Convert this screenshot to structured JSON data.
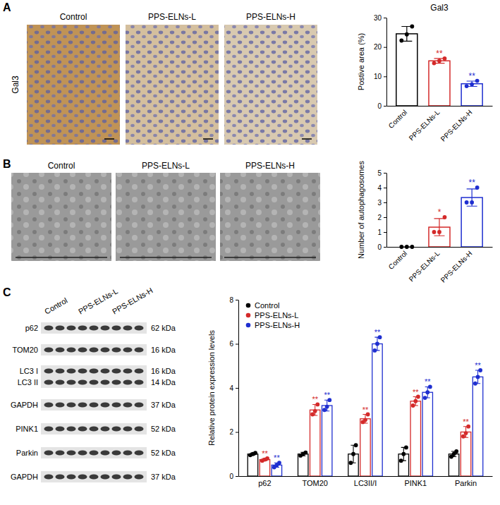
{
  "chart_data": [
    {
      "type": "bar",
      "title": "Gal3",
      "y_label": "Postive area (%)",
      "categories": [
        "Control",
        "PPS-ELNs-L",
        "PPS-ELNs-H"
      ],
      "values": [
        24.5,
        15.3,
        7.5
      ],
      "error": [
        2.5,
        0.8,
        0.9
      ],
      "points": [
        [
          22.2,
          24.3,
          27
        ],
        [
          14.5,
          15.3,
          16.1
        ],
        [
          6.7,
          7.3,
          8.5
        ]
      ],
      "significance": [
        null,
        "**",
        "**"
      ],
      "colors": [
        "#000000",
        "#d42a2a",
        "#1f2fd0"
      ],
      "marker": "circle",
      "grid": false,
      "ylim": [
        0,
        30
      ],
      "yticks": [
        0,
        10,
        20,
        30
      ]
    },
    {
      "type": "bar",
      "y_label": "Number of autophagosomes",
      "categories": [
        "Control",
        "PPS-ELNs-L",
        "PPS-ELNs-H"
      ],
      "values": [
        0,
        1.33,
        3.33
      ],
      "error": [
        0,
        0.58,
        0.58
      ],
      "points": [
        [
          0,
          0,
          0
        ],
        [
          1,
          1,
          2
        ],
        [
          3,
          3,
          4
        ]
      ],
      "significance": [
        null,
        "*",
        "**"
      ],
      "colors": [
        "#000000",
        "#d42a2a",
        "#1f2fd0"
      ],
      "marker": "circle",
      "grid": false,
      "ylim": [
        0,
        5
      ],
      "yticks": [
        0,
        1,
        2,
        3,
        4,
        5
      ]
    },
    {
      "type": "bar",
      "y_label": "Relative protein expression levels",
      "categories": [
        "p62",
        "TOM20",
        "LC3II/I",
        "PINK1",
        "Parkin"
      ],
      "series": [
        {
          "name": "Control",
          "color": "#000000",
          "values": [
            1,
            1,
            1,
            1,
            1
          ],
          "error": [
            0.05,
            0.08,
            0.4,
            0.3,
            0.12
          ],
          "points": [
            [
              0.95,
              1,
              1.05
            ],
            [
              0.93,
              1,
              1.07
            ],
            [
              0.6,
              1,
              1.4
            ],
            [
              0.7,
              1,
              1.3
            ],
            [
              0.88,
              1,
              1.12
            ]
          ],
          "significance": [
            null,
            null,
            null,
            null,
            null
          ]
        },
        {
          "name": "PPS-ELNs-L",
          "color": "#d42a2a",
          "values": [
            0.75,
            3.0,
            2.6,
            3.4,
            2.0
          ],
          "error": [
            0.05,
            0.25,
            0.2,
            0.2,
            0.25
          ],
          "points": [
            [
              0.7,
              0.75,
              0.8
            ],
            [
              2.8,
              2.95,
              3.25
            ],
            [
              2.45,
              2.55,
              2.8
            ],
            [
              3.2,
              3.4,
              3.6
            ],
            [
              1.8,
              1.95,
              2.25
            ]
          ],
          "significance": [
            "**",
            "**",
            "**",
            "**",
            "**"
          ]
        },
        {
          "name": "PPS-ELNs-H",
          "color": "#1f2fd0",
          "values": [
            0.5,
            3.2,
            6.0,
            3.8,
            4.5
          ],
          "error": [
            0.1,
            0.25,
            0.3,
            0.25,
            0.3
          ],
          "points": [
            [
              0.4,
              0.5,
              0.6
            ],
            [
              3.0,
              3.15,
              3.45
            ],
            [
              5.7,
              6.0,
              6.3
            ],
            [
              3.55,
              3.8,
              4.05
            ],
            [
              4.2,
              4.5,
              4.8
            ]
          ],
          "significance": [
            "**",
            "**",
            "**",
            "**",
            "**"
          ]
        }
      ],
      "legend": "top-left",
      "marker": "circle",
      "grid": false,
      "ylim": [
        0,
        8
      ],
      "yticks": [
        0,
        2,
        4,
        6,
        8
      ]
    }
  ],
  "panels": [
    {
      "letter": "A",
      "row_label": "Gal3",
      "image_labels": [
        "Control",
        "PPS-ELNs-L",
        "PPS-ELNs-H"
      ]
    },
    {
      "letter": "B",
      "image_labels": [
        "Control",
        "PPS-ELNs-L",
        "PPS-ELNs-H"
      ]
    },
    {
      "letter": "C",
      "lane_groups": [
        "Control",
        "PPS-ELNs-L",
        "PPS-ELNs-H"
      ],
      "rows": [
        {
          "label": "p62",
          "kda": "62 kDa"
        },
        {
          "label": "TOM20",
          "kda": "16 kDa"
        },
        {
          "label": "LC3 I",
          "kda": "16 kDa"
        },
        {
          "label": "LC3 II",
          "kda": "14 kDa"
        },
        {
          "label": "GAPDH",
          "kda": "37 kDa"
        },
        {
          "label": "PINK1",
          "kda": "52 kDa"
        },
        {
          "label": "Parkin",
          "kda": "52 kDa"
        },
        {
          "label": "GAPDH",
          "kda": "37 kDa"
        }
      ]
    }
  ]
}
